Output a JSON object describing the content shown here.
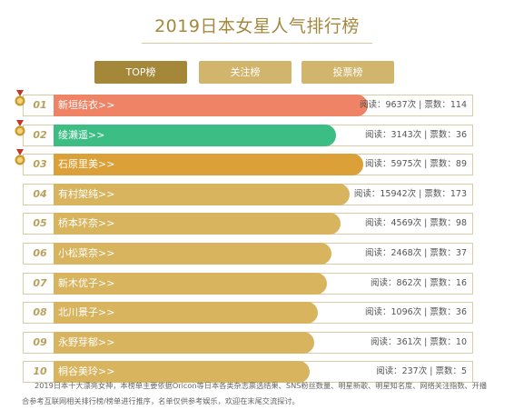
{
  "title": "2019日本女星人气排行榜",
  "tabs": [
    {
      "label": "TOP榜",
      "active": true
    },
    {
      "label": "关注榜",
      "active": false
    },
    {
      "label": "投票榜",
      "active": false
    }
  ],
  "rows": [
    {
      "rank": "01",
      "name": "新垣结衣>>",
      "stats": "阅读：9637次 | 票数：114",
      "color": "#ef8365",
      "fill": 0.7,
      "medal": true
    },
    {
      "rank": "02",
      "name": "绫濑遥>>",
      "stats": "阅读：3143次 | 票数：36",
      "color": "#3cbd84",
      "fill": 0.63,
      "medal": true
    },
    {
      "rank": "03",
      "name": "石原里美>>",
      "stats": "阅读：5975次 | 票数：89",
      "color": "#dba037",
      "fill": 0.69,
      "medal": true
    },
    {
      "rank": "04",
      "name": "有村架纯>>",
      "stats": "阅读：15942次 | 票数：173",
      "color": "#d8b45e",
      "fill": 0.66,
      "medal": false
    },
    {
      "rank": "05",
      "name": "桥本环奈>>",
      "stats": "阅读：4569次 | 票数：98",
      "color": "#d8b45e",
      "fill": 0.64,
      "medal": false
    },
    {
      "rank": "06",
      "name": "小松菜奈>>",
      "stats": "阅读：2468次 | 票数：37",
      "color": "#d8b45e",
      "fill": 0.62,
      "medal": false
    },
    {
      "rank": "07",
      "name": "新木优子>>",
      "stats": "阅读：862次 | 票数：16",
      "color": "#d8b45e",
      "fill": 0.61,
      "medal": false
    },
    {
      "rank": "08",
      "name": "北川景子>>",
      "stats": "阅读：1096次 | 票数：36",
      "color": "#d8b45e",
      "fill": 0.59,
      "medal": false
    },
    {
      "rank": "09",
      "name": "永野芽郁>>",
      "stats": "阅读：361次 | 票数：10",
      "color": "#d8b45e",
      "fill": 0.58,
      "medal": false
    },
    {
      "rank": "10",
      "name": "桐谷美玲>>",
      "stats": "阅读：237次 | 票数：5",
      "color": "#d8b45e",
      "fill": 0.57,
      "medal": false
    }
  ],
  "footer": "2019日本十大漂亮女神，本榜单主要依据Oricon等日本各类杂志票选结果、SNS粉丝数量、明星新歌、明星知名度、网络关注指数、开播合参考互联网相关排行榜/榜单进行推序，名单仅供参考娱乐，欢迎在末尾交流探讨。",
  "accent_color": "#a5873a",
  "tab_inactive_color": "#d1b56d",
  "medal_color": "#c99a2a"
}
